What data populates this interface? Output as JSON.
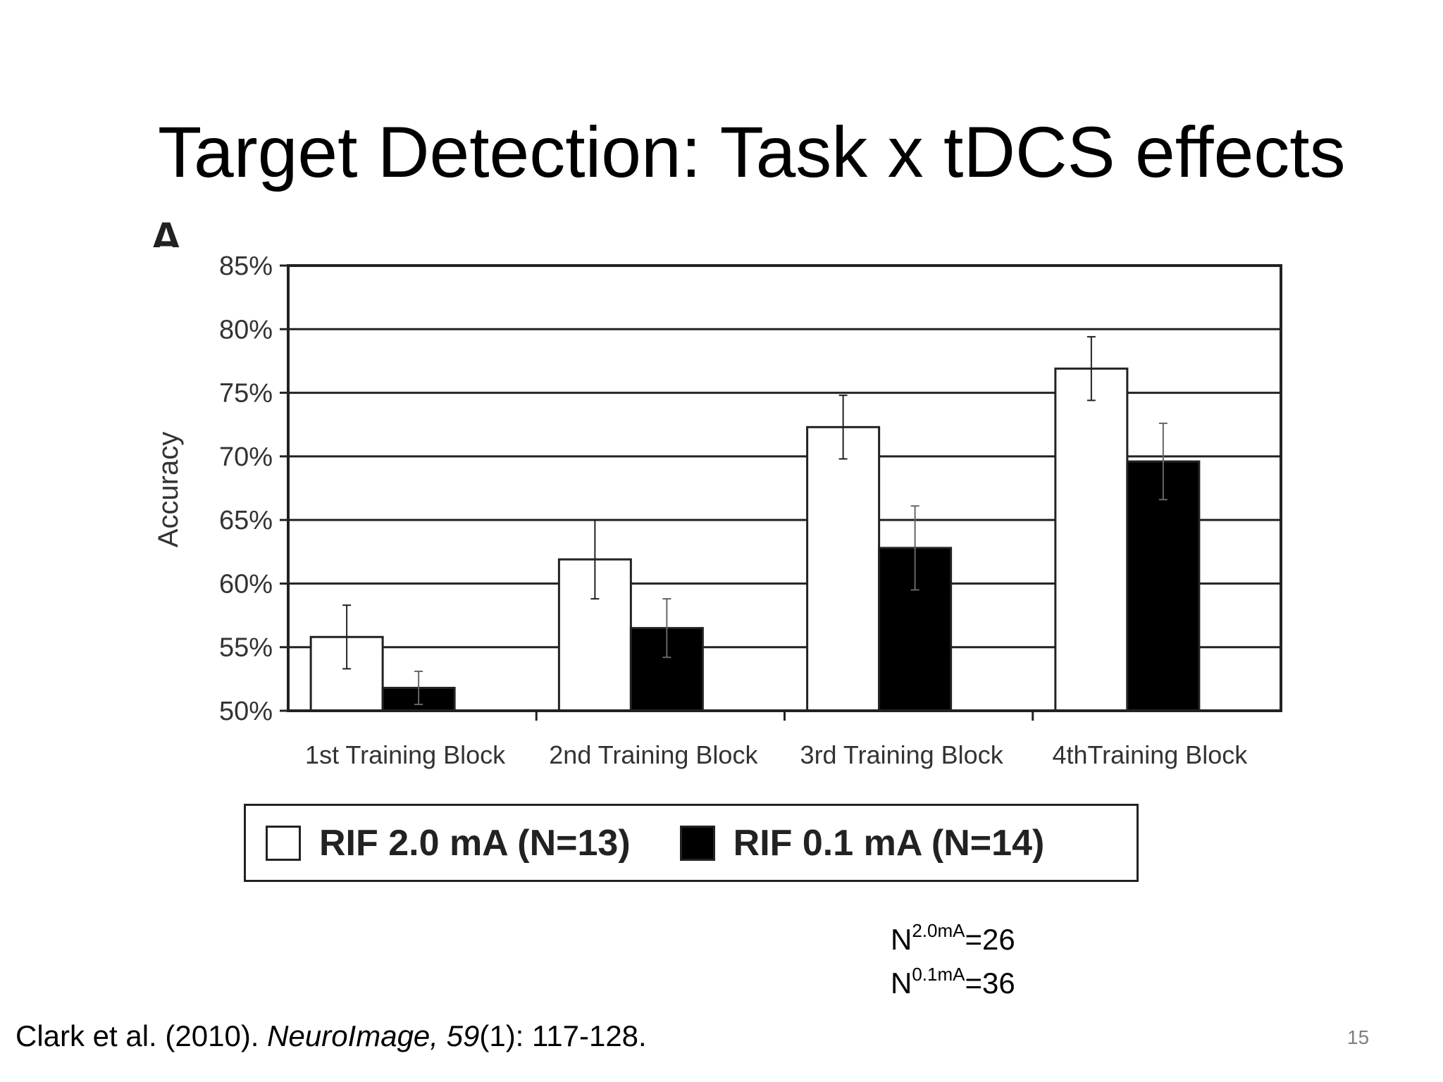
{
  "slide": {
    "title": "Target Detection: Task x tDCS effects",
    "panel_letter": "A",
    "n_lines": [
      {
        "base": "N",
        "sup": "2.0mA",
        "value": "=26"
      },
      {
        "base": "N",
        "sup": "0.1mA",
        "value": "=36"
      }
    ],
    "citation": {
      "authors": "Clark et al. (2010). ",
      "journal": "NeuroImage, ",
      "volume": "59",
      "issue_pages": "(1): 117-128."
    },
    "page_number": "15"
  },
  "chart_data": {
    "type": "bar",
    "ylabel": "Accuracy",
    "xlabel": "",
    "ylim": [
      50,
      85
    ],
    "yticks": [
      "50%",
      "55%",
      "60%",
      "65%",
      "70%",
      "75%",
      "80%",
      "85%"
    ],
    "grid": true,
    "categories": [
      "1st Training Block",
      "2nd Training Block",
      "3rd Training Block",
      "4thTraining Block"
    ],
    "series": [
      {
        "name": "RIF 2.0 mA (N=13)",
        "color": "#ffffff",
        "values": [
          55.8,
          61.9,
          72.3,
          76.9
        ],
        "errors": [
          2.5,
          3.1,
          2.5,
          2.5
        ]
      },
      {
        "name": "RIF 0.1 mA (N=14)",
        "color": "#000000",
        "values": [
          51.8,
          56.5,
          62.8,
          69.6
        ],
        "errors": [
          1.3,
          2.3,
          3.3,
          3.0
        ]
      }
    ],
    "legend_position": "bottom"
  }
}
